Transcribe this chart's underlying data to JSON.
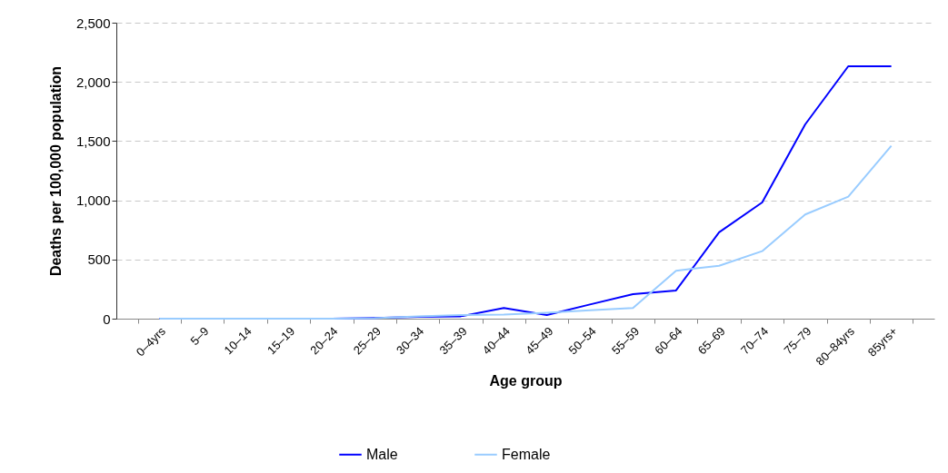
{
  "chart_data": {
    "type": "line",
    "xlabel": "Age group",
    "ylabel": "Deaths per 100,000 population",
    "categories": [
      "0–4yrs",
      "5–9",
      "10–14",
      "15–19",
      "20–24",
      "25–29",
      "30–34",
      "35–39",
      "40–44",
      "45–49",
      "50–54",
      "55–59",
      "60–64",
      "65–69",
      "70–74",
      "75–79",
      "80–84yrs",
      "85yrs+"
    ],
    "series": [
      {
        "name": "Male",
        "color": "#0000ff",
        "values": [
          0,
          0,
          0,
          0,
          0,
          5,
          15,
          20,
          90,
          30,
          120,
          207,
          238,
          729,
          982,
          1641,
          2132,
          2132
        ]
      },
      {
        "name": "Female",
        "color": "#99ccff",
        "values": [
          0,
          0,
          0,
          0,
          0,
          3,
          20,
          30,
          35,
          50,
          70,
          90,
          405,
          447,
          570,
          880,
          1030,
          1460
        ]
      }
    ],
    "ylim": [
      0,
      2500
    ],
    "yticks": [
      0,
      500,
      {
        "value": 1000,
        "label": "1,000"
      },
      {
        "value": 1500,
        "label": "1,500"
      },
      {
        "value": 2000,
        "label": "2,000"
      },
      {
        "value": 2500,
        "label": "2,500"
      }
    ],
    "grid": "y",
    "legend": "bottom",
    "marker": "none",
    "line_style": "solid"
  }
}
